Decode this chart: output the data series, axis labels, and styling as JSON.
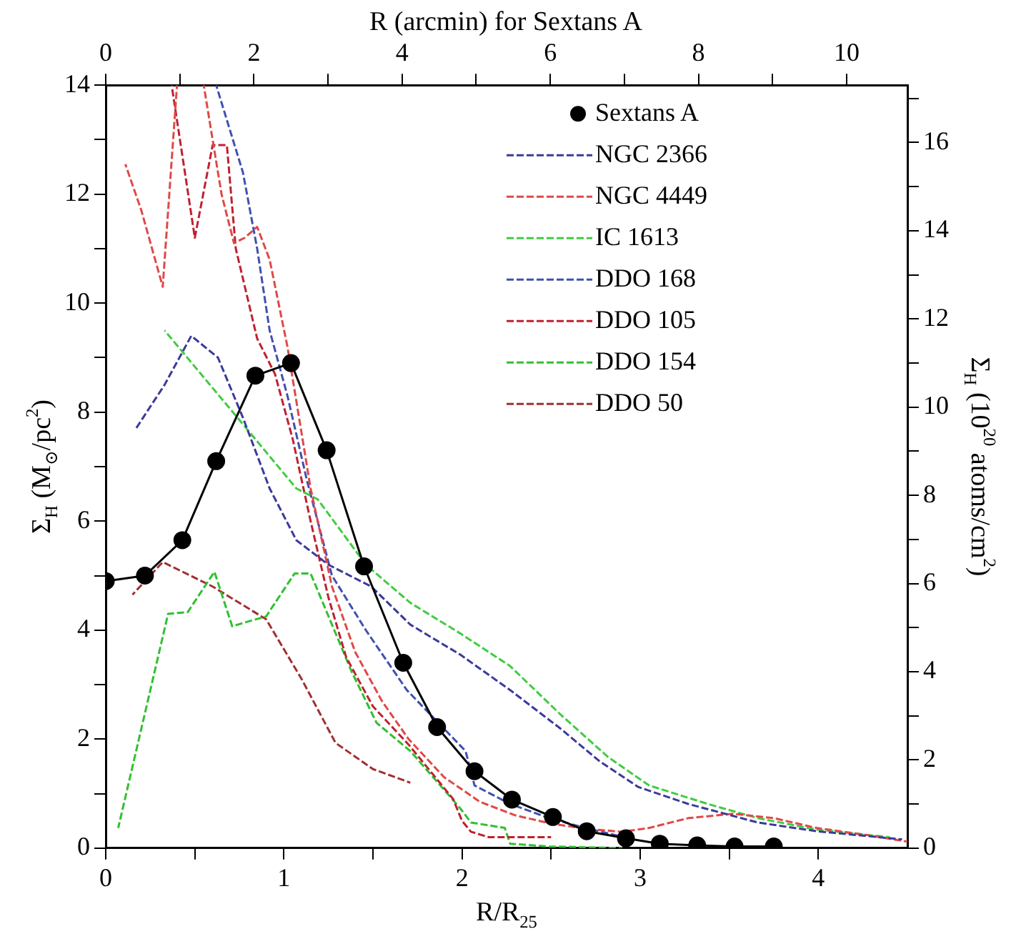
{
  "chart_data": {
    "type": "line",
    "xlabel": "R/R$_{25}$",
    "ylabel": "Σ$_{H}$ (M$_{⊙}$/pc$^{2}$)",
    "y2label": "Σ$_{H}$ (10$^{20}$ atoms/cm$^{2}$)",
    "x2label": "R (arcmin) for Sextans A",
    "xlim": [
      0,
      4.5
    ],
    "xticks": [
      0,
      {
        "value": 0.5,
        "label": null
      },
      1,
      {
        "value": 1.5,
        "label": null
      },
      2,
      {
        "value": 2.5,
        "label": null
      },
      3,
      {
        "value": 3.5,
        "label": null
      },
      4
    ],
    "ylim": [
      0,
      14
    ],
    "yticks": [
      0,
      {
        "value": 1,
        "label": null
      },
      2,
      {
        "value": 3,
        "label": null
      },
      4,
      {
        "value": 5,
        "label": null
      },
      6,
      {
        "value": 7,
        "label": null
      },
      8,
      {
        "value": 9,
        "label": null
      },
      10,
      {
        "value": 11,
        "label": null
      },
      12,
      {
        "value": 13,
        "label": null
      },
      14
    ],
    "x2lim": [
      0,
      10.82
    ],
    "x2ticks": [
      0,
      {
        "value": 1,
        "label": null
      },
      2,
      {
        "value": 3,
        "label": null
      },
      4,
      {
        "value": 5,
        "label": null
      },
      6,
      {
        "value": 7,
        "label": null
      },
      8,
      {
        "value": 9,
        "label": null
      },
      10
    ],
    "y2lim": [
      0,
      17.3
    ],
    "y2ticks": [
      0,
      {
        "value": 1,
        "label": null
      },
      2,
      {
        "value": 3,
        "label": null
      },
      4,
      {
        "value": 5,
        "label": null
      },
      6,
      {
        "value": 7,
        "label": null
      },
      8,
      {
        "value": 9,
        "label": null
      },
      10,
      {
        "value": 11,
        "label": null
      },
      12,
      {
        "value": 13,
        "label": null
      },
      14,
      {
        "value": 15,
        "label": null
      },
      16,
      {
        "value": 17,
        "label": null
      }
    ],
    "grid": false,
    "legend": "top right",
    "series": [
      {
        "name": "Sextans A",
        "color": "#000000",
        "marker": "circle",
        "line_style": "solid",
        "x": [
          0.0,
          0.22,
          0.43,
          0.62,
          0.84,
          1.04,
          1.24,
          1.45,
          1.67,
          1.86,
          2.07,
          2.28,
          2.51,
          2.7,
          2.92,
          3.11,
          3.32,
          3.53,
          3.75
        ],
        "values": [
          4.9,
          5.0,
          5.65,
          7.1,
          8.67,
          8.9,
          7.3,
          5.17,
          3.4,
          2.22,
          1.41,
          0.89,
          0.57,
          0.31,
          0.18,
          0.08,
          0.05,
          0.03,
          0.03
        ]
      },
      {
        "name": "NGC 2366",
        "color": "#3a3a9a",
        "marker": "none",
        "line_style": "dashed",
        "x": [
          0.17,
          0.33,
          0.48,
          0.63,
          0.77,
          0.92,
          1.07,
          1.25,
          1.49,
          1.71,
          1.99,
          2.27,
          2.55,
          2.77,
          2.99,
          3.27,
          3.66,
          3.99,
          4.47
        ],
        "values": [
          7.7,
          8.5,
          9.4,
          9.0,
          7.9,
          6.6,
          5.65,
          5.2,
          4.8,
          4.1,
          3.55,
          2.9,
          2.2,
          1.6,
          1.12,
          0.81,
          0.47,
          0.31,
          0.16
        ]
      },
      {
        "name": "NGC 4449",
        "color": "#e04848",
        "marker": "none",
        "line_style": "dashed",
        "x": [
          0.11,
          0.2,
          0.32,
          0.4,
          0.47,
          0.55,
          0.65,
          0.72,
          0.78,
          0.85,
          0.92,
          1.02,
          1.15,
          1.27,
          1.4,
          1.55,
          1.7,
          1.9,
          2.1,
          2.3,
          2.5,
          2.7,
          2.9,
          3.05,
          3.27,
          3.52,
          3.75,
          3.99,
          4.25,
          4.5
        ],
        "values": [
          12.55,
          11.7,
          10.3,
          14,
          null,
          14,
          12.0,
          11.1,
          11.2,
          11.4,
          10.8,
          9.2,
          6.6,
          4.8,
          3.6,
          2.7,
          2.0,
          1.3,
          0.85,
          0.6,
          0.45,
          0.35,
          0.3,
          0.37,
          0.55,
          0.63,
          0.55,
          0.37,
          0.25,
          0.12
        ]
      },
      {
        "name": "IC 1613",
        "color": "#40cc40",
        "marker": "none",
        "line_style": "dashed",
        "x": [
          0.33,
          0.79,
          1.07,
          1.19,
          1.46,
          1.71,
          1.99,
          2.27,
          2.55,
          2.82,
          3.05,
          3.38,
          3.66,
          3.99,
          4.4
        ],
        "values": [
          9.5,
          7.7,
          6.6,
          6.4,
          5.2,
          4.5,
          3.94,
          3.34,
          2.46,
          1.67,
          1.15,
          0.81,
          0.55,
          0.34,
          0.2
        ]
      },
      {
        "name": "DDO 168",
        "color": "#4050b0",
        "marker": "none",
        "line_style": "dashed",
        "x": [
          0.62,
          0.77,
          0.85,
          0.92,
          1.02,
          1.13,
          1.27,
          1.46,
          1.69,
          2.02,
          2.07,
          2.27,
          2.49,
          2.69,
          2.91
        ],
        "values": [
          14,
          12.4,
          11.0,
          9.5,
          8.3,
          6.74,
          5.0,
          4.0,
          2.9,
          1.78,
          1.15,
          0.81,
          0.55,
          0.37,
          0.2
        ]
      },
      {
        "name": "DDO 105",
        "color": "#c02030",
        "marker": "none",
        "line_style": "dashed",
        "x": [
          0.37,
          0.5,
          0.6,
          0.68,
          0.73,
          0.85,
          0.95,
          1.05,
          1.15,
          1.25,
          1.35,
          1.5,
          1.7,
          1.85,
          1.95,
          2.0,
          2.05,
          2.15,
          2.3,
          2.5
        ],
        "values": [
          14,
          11.2,
          12.9,
          12.9,
          11.0,
          9.35,
          8.7,
          7.5,
          6.0,
          4.6,
          3.5,
          2.6,
          1.9,
          1.3,
          0.9,
          0.5,
          0.3,
          0.2,
          0.2,
          0.2
        ]
      },
      {
        "name": "DDO 154",
        "color": "#30c030",
        "marker": "none",
        "line_style": "dashed",
        "x": [
          0.07,
          0.35,
          0.46,
          0.61,
          0.71,
          0.79,
          0.9,
          1.06,
          1.15,
          1.38,
          1.52,
          1.71,
          1.99,
          2.05,
          2.24,
          2.27,
          2.49,
          2.9
        ],
        "values": [
          0.37,
          4.3,
          4.33,
          5.07,
          4.07,
          4.15,
          4.25,
          5.04,
          5.04,
          3.24,
          2.3,
          1.78,
          0.73,
          0.47,
          0.37,
          0.08,
          0.03,
          0
        ]
      },
      {
        "name": "DDO 50",
        "color": "#a03030",
        "marker": "none",
        "line_style": "dashed",
        "x": [
          0.15,
          0.32,
          0.6,
          0.9,
          1.1,
          1.29,
          1.5,
          1.71
        ],
        "values": [
          4.65,
          5.25,
          4.8,
          4.2,
          3.1,
          1.93,
          1.45,
          1.2
        ]
      }
    ]
  }
}
